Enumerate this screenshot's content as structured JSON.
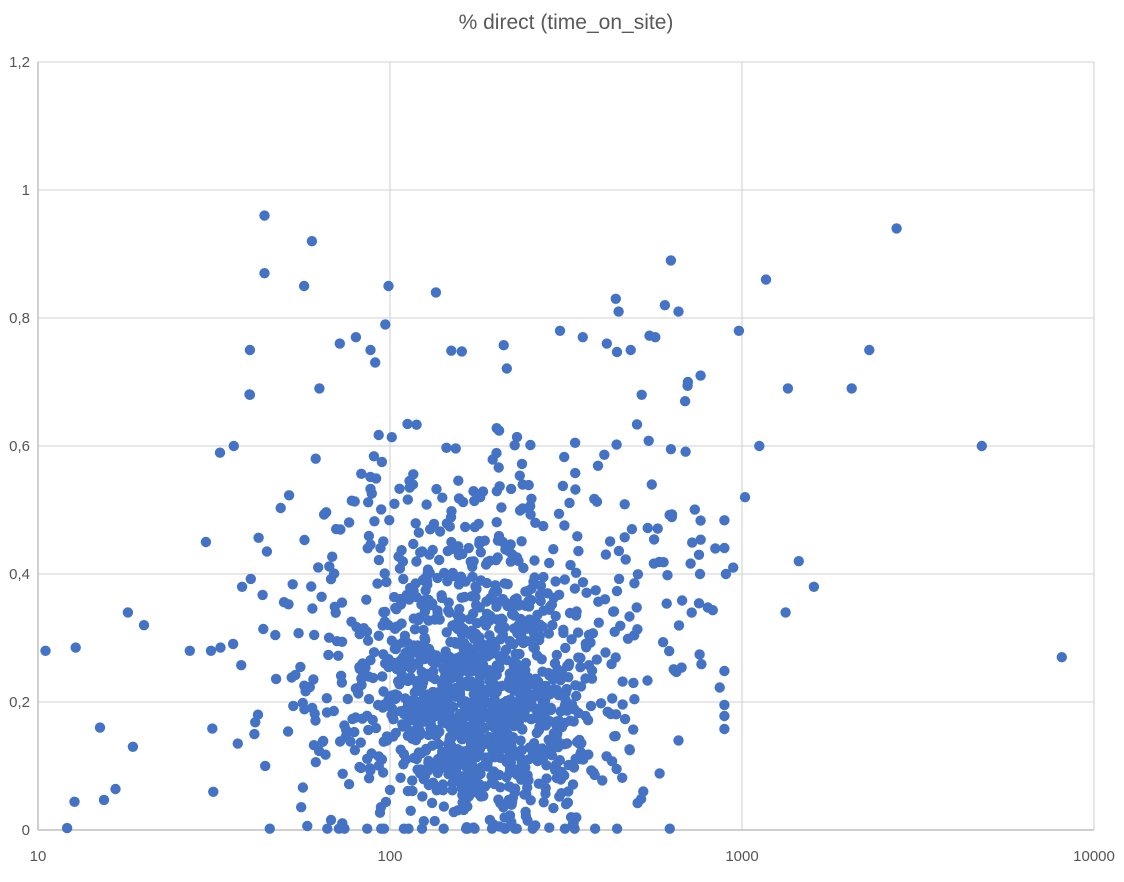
{
  "window": {
    "background_color": "#FFFFFF"
  },
  "chart_data": {
    "type": "scatter",
    "title": "% direct (time_on_site)",
    "xlabel": "",
    "ylabel": "",
    "legend": "none",
    "grid": "on",
    "x_axis": {
      "scale": "log10",
      "min": 10,
      "max": 10000,
      "tick_values": [
        10,
        100,
        1000,
        10000
      ],
      "tick_labels": [
        "10",
        "100",
        "1000",
        "10000"
      ]
    },
    "y_axis": {
      "scale": "linear",
      "min": 0,
      "max": 1.2,
      "tick_values": [
        0,
        0.2,
        0.4,
        0.6,
        0.8,
        1,
        1.2
      ],
      "tick_labels": [
        "0",
        "0,2",
        "0,4",
        "0,6",
        "0,8",
        "1",
        "1,2"
      ],
      "decimal_separator": ","
    },
    "style": {
      "marker_color": "#4472C4",
      "marker_radius_px": 5.2,
      "gridline_color": "#D9D9D9",
      "axis_line_color": "#BFBFBF",
      "label_color": "#555555",
      "title_color": "#595959",
      "background": "#FFFFFF"
    },
    "series": [
      {
        "name": "% direct (time_on_site)",
        "readable_points": [
          [
            44,
            0.96
          ],
          [
            60,
            0.92
          ],
          [
            44,
            0.87
          ],
          [
            57,
            0.85
          ],
          [
            99,
            0.85
          ],
          [
            135,
            0.84
          ],
          [
            2750,
            0.94
          ],
          [
            628,
            0.89
          ],
          [
            1170,
            0.86
          ],
          [
            980,
            0.78
          ],
          [
            604,
            0.82
          ],
          [
            660,
            0.81
          ],
          [
            438,
            0.83
          ],
          [
            446,
            0.81
          ],
          [
            413,
            0.76
          ],
          [
            567,
            0.77
          ],
          [
            483,
            0.75
          ],
          [
            304,
            0.78
          ],
          [
            353,
            0.77
          ],
          [
            97,
            0.79
          ],
          [
            80,
            0.77
          ],
          [
            72,
            0.76
          ],
          [
            88,
            0.75
          ],
          [
            40,
            0.75
          ],
          [
            2300,
            0.75
          ],
          [
            2050,
            0.69
          ],
          [
            1350,
            0.69
          ],
          [
            763,
            0.71
          ],
          [
            702,
            0.7
          ],
          [
            519,
            0.68
          ],
          [
            689,
            0.67
          ],
          [
            63,
            0.69
          ],
          [
            40,
            0.68
          ],
          [
            4800,
            0.6
          ],
          [
            1120,
            0.6
          ],
          [
            36,
            0.6
          ],
          [
            1020,
            0.52
          ],
          [
            30,
            0.45
          ],
          [
            38,
            0.38
          ],
          [
            840,
            0.44
          ],
          [
            755,
            0.43
          ],
          [
            760,
            0.4
          ],
          [
            900,
            0.4
          ],
          [
            944,
            0.41
          ],
          [
            1450,
            0.42
          ],
          [
            1600,
            0.38
          ],
          [
            1330,
            0.34
          ],
          [
            8100,
            0.27
          ],
          [
            10.5,
            0.28
          ],
          [
            12.8,
            0.285
          ],
          [
            18,
            0.34
          ],
          [
            20,
            0.32
          ],
          [
            27,
            0.28
          ],
          [
            31,
            0.28
          ],
          [
            33,
            0.285
          ],
          [
            15,
            0.16
          ],
          [
            18.6,
            0.13
          ],
          [
            16.6,
            0.064
          ],
          [
            12.7,
            0.044
          ],
          [
            15.4,
            0.047
          ],
          [
            12.1,
            0.003
          ],
          [
            660,
            0.14
          ],
          [
            505,
            0.042
          ],
          [
            327,
            0.02
          ]
        ],
        "dense_cloud_model": {
          "note": "Approximately 1500 unlabeled markers form the dense cloud; individually unreadable. Reconstructed as gaussian blobs in (log10(x), y) space with the seeded PRNG below.",
          "seed": 1337,
          "total_points": 1490,
          "blobs": [
            {
              "n": 720,
              "log10x_mean": 2.27,
              "log10x_sd": 0.155,
              "y_mean": 0.155,
              "y_sd": 0.075
            },
            {
              "n": 400,
              "log10x_mean": 2.23,
              "log10x_sd": 0.21,
              "y_mean": 0.27,
              "y_sd": 0.1
            },
            {
              "n": 220,
              "log10x_mean": 2.2,
              "log10x_sd": 0.27,
              "y_mean": 0.44,
              "y_sd": 0.13
            },
            {
              "n": 80,
              "log10x_mean": 1.86,
              "log10x_sd": 0.17,
              "y_mean": 0.17,
              "y_sd": 0.1
            },
            {
              "n": 70,
              "log10x_mean": 2.75,
              "log10x_sd": 0.13,
              "y_mean": 0.33,
              "y_sd": 0.14
            }
          ],
          "clip": {
            "log10x": [
              1.05,
              2.95
            ],
            "y": [
              0.002,
              0.93
            ]
          }
        }
      }
    ]
  }
}
